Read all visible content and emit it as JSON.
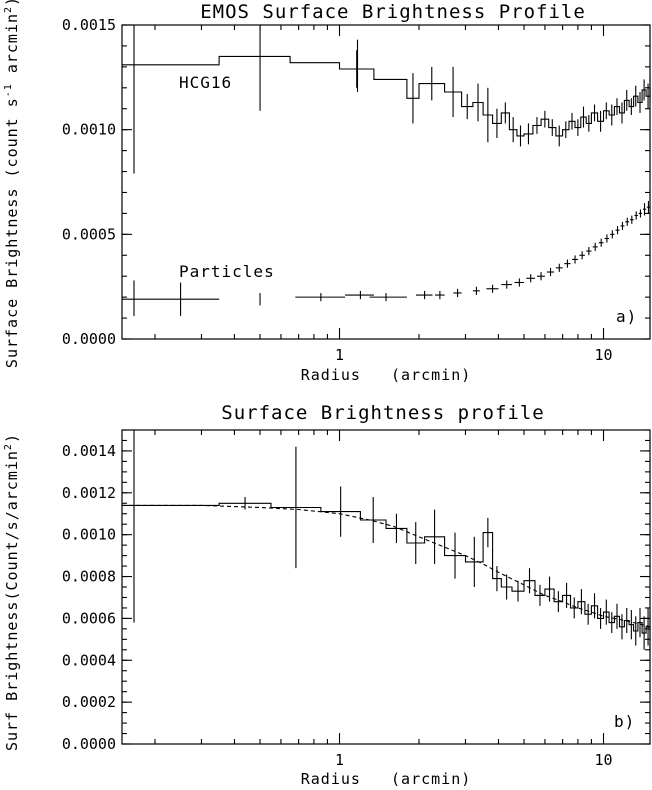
{
  "chart_data": [
    {
      "type": "line",
      "title": "EMOS Surface Brightness Profile",
      "xlabel": "Radius   (arcmin)",
      "ylabel": "Surface Brightness (count s",
      "ylabel_sup1": "-1",
      "ylabel_mid": " arcmin",
      "ylabel_sup2": "2",
      "ylabel_end": ")",
      "xscale": "log",
      "xlim": [
        0.15,
        15
      ],
      "ylim": [
        0.0,
        0.0015
      ],
      "y_ticks": [
        0.0,
        0.0005,
        0.001,
        0.0015
      ],
      "y_tick_labels": [
        "0.0000",
        "0.0005",
        "0.0010",
        "0.0015"
      ],
      "x_ticks": [
        1,
        10
      ],
      "x_tick_labels": [
        "1",
        "10"
      ],
      "panel_label": "a)",
      "annotations": [
        {
          "text": "HCG16",
          "x": 0.19,
          "y": 0.00118
        },
        {
          "text": "Particles",
          "x": 0.25,
          "y": 0.00029
        }
      ],
      "series": [
        {
          "name": "HCG16",
          "style": "step",
          "x": [
            0.15,
            0.35,
            0.65,
            1.0,
            1.35,
            1.8,
            2.0,
            2.5,
            2.9,
            3.2,
            3.5,
            3.8,
            4.1,
            4.4,
            4.7,
            5.0,
            5.4,
            5.8,
            6.2,
            6.6,
            7.0,
            7.4,
            7.8,
            8.2,
            8.6,
            9.0,
            9.5,
            10.0,
            10.5,
            11.0,
            11.5,
            12.0,
            12.5,
            13.0,
            13.5,
            14.0,
            14.5,
            15.0
          ],
          "y": [
            0.00131,
            0.00135,
            0.00132,
            0.00129,
            0.00124,
            0.00115,
            0.00122,
            0.00118,
            0.00111,
            0.00113,
            0.00107,
            0.00103,
            0.00108,
            0.001,
            0.00097,
            0.00098,
            0.00102,
            0.00105,
            0.00101,
            0.00097,
            0.001,
            0.00104,
            0.00101,
            0.00106,
            0.00103,
            0.00108,
            0.00104,
            0.00109,
            0.00107,
            0.00111,
            0.00108,
            0.00114,
            0.00111,
            0.00116,
            0.00113,
            0.00119,
            0.00116,
            0.0012
          ],
          "yerr": [
            0.00052,
            0.0,
            0.0,
            9e-05,
            0.0,
            0.00012,
            8e-05,
            0.00012,
            6e-05,
            9e-05,
            0.00013,
            7e-05,
            5e-05,
            6e-05,
            5e-05,
            5e-05,
            4e-05,
            4e-05,
            4e-05,
            5e-05,
            4e-05,
            4e-05,
            4e-05,
            5e-05,
            4e-05,
            4e-05,
            5e-05,
            4e-05,
            5e-05,
            4e-05,
            5e-05,
            5e-05,
            4e-05,
            5e-05,
            5e-05,
            5e-05,
            6e-05,
            6e-05
          ],
          "vbars": [
            {
              "x": 0.5,
              "y0": 0.00109,
              "y1": 0.00154
            },
            {
              "x": 1.17,
              "y0": 0.00118,
              "y1": 0.00143
            }
          ]
        },
        {
          "name": "Particles",
          "style": "points",
          "x": [
            0.25,
            0.5,
            0.85,
            1.2,
            1.5,
            2.1,
            2.4,
            2.8,
            3.3,
            3.8,
            4.3,
            4.8,
            5.3,
            5.8,
            6.3,
            6.8,
            7.3,
            7.8,
            8.3,
            8.8,
            9.3,
            9.8,
            10.3,
            10.8,
            11.3,
            11.8,
            12.3,
            12.8,
            13.3,
            13.8,
            14.3,
            14.8
          ],
          "y": [
            0.00019,
            0.00019,
            0.0002,
            0.00021,
            0.0002,
            0.00021,
            0.00021,
            0.00022,
            0.00023,
            0.00024,
            0.00026,
            0.00027,
            0.00029,
            0.0003,
            0.00032,
            0.00034,
            0.00036,
            0.00038,
            0.0004,
            0.00042,
            0.00044,
            0.00046,
            0.00048,
            0.0005,
            0.00052,
            0.00054,
            0.00056,
            0.00057,
            0.00059,
            0.0006,
            0.00062,
            0.00063
          ],
          "xerr_lo": [
            0.1,
            0.0,
            0.17,
            0.15,
            0.2,
            0.15,
            0.1,
            0.1,
            0.1,
            0.2,
            0.2,
            0.2,
            0.2,
            0.2,
            0.2,
            0.2,
            0.2,
            0.2,
            0.2,
            0.2,
            0.2,
            0.2,
            0.2,
            0.2,
            0.2,
            0.2,
            0.2,
            0.2,
            0.2,
            0.2,
            0.2,
            0.2
          ],
          "xerr_hi": [
            0.1,
            0.0,
            0.2,
            0.15,
            0.3,
            0.15,
            0.1,
            0.1,
            0.1,
            0.2,
            0.2,
            0.2,
            0.2,
            0.2,
            0.2,
            0.2,
            0.2,
            0.2,
            0.2,
            0.2,
            0.2,
            0.2,
            0.2,
            0.2,
            0.2,
            0.2,
            0.2,
            0.2,
            0.2,
            0.2,
            0.2,
            0.2
          ],
          "yerr": [
            7e-05,
            2e-05,
            1e-05,
            1e-05,
            1e-05,
            1e-05,
            1e-05,
            1e-05,
            1e-05,
            1e-05,
            1e-05,
            1e-05,
            1e-05,
            1e-05,
            1e-05,
            1e-05,
            1e-05,
            1e-05,
            1e-05,
            1e-05,
            1e-05,
            1e-05,
            1e-05,
            1e-05,
            1e-05,
            1e-05,
            1e-05,
            1e-05,
            1e-05,
            1e-05,
            2e-05,
            2e-05
          ]
        }
      ]
    },
    {
      "type": "line",
      "title": "Surface Brightness profile",
      "xlabel": "Radius   (arcmin)",
      "ylabel": "Surf Brightness(Count/s/arcmin",
      "ylabel_sup2": "2",
      "ylabel_end": ")",
      "xscale": "log",
      "xlim": [
        0.15,
        15
      ],
      "ylim": [
        0.0,
        0.0015
      ],
      "y_ticks": [
        0.0,
        0.0002,
        0.0004,
        0.0006,
        0.0008,
        0.001,
        0.0012,
        0.0014
      ],
      "y_tick_labels": [
        "0.0000",
        "0.0002",
        "0.0004",
        "0.0006",
        "0.0008",
        "0.0010",
        "0.0012",
        "0.0014"
      ],
      "x_ticks": [
        1,
        10
      ],
      "x_tick_labels": [
        "1",
        "10"
      ],
      "panel_label": "b)",
      "series": [
        {
          "style": "step",
          "x": [
            0.15,
            0.35,
            0.55,
            0.85,
            1.2,
            1.5,
            1.8,
            2.1,
            2.5,
            3.0,
            3.5,
            3.8,
            4.1,
            4.5,
            5.0,
            5.5,
            6.0,
            6.5,
            7.0,
            7.5,
            8.0,
            8.5,
            9.0,
            9.5,
            10.0,
            10.5,
            11.0,
            11.5,
            12.0,
            12.5,
            13.0,
            13.5,
            14.0,
            14.5,
            15.0
          ],
          "y": [
            0.00114,
            0.00115,
            0.00113,
            0.00111,
            0.00107,
            0.00103,
            0.00096,
            0.00099,
            0.0009,
            0.00087,
            0.00101,
            0.00079,
            0.00075,
            0.00073,
            0.00078,
            0.00071,
            0.00074,
            0.00068,
            0.00071,
            0.00065,
            0.00068,
            0.00062,
            0.00066,
            0.0006,
            0.00063,
            0.00058,
            0.00061,
            0.00056,
            0.00059,
            0.00057,
            0.00054,
            0.00058,
            0.00053,
            0.00056,
            0.00054
          ],
          "yerr": [
            0.00056,
            3e-05,
            0.00029,
            0.00012,
            0.00011,
            7e-05,
            0.0001,
            0.00013,
            0.00011,
            0.00012,
            7e-05,
            6e-05,
            6e-05,
            5e-05,
            6e-05,
            5e-05,
            6e-05,
            5e-05,
            6e-05,
            5e-05,
            6e-05,
            5e-05,
            6e-05,
            5e-05,
            6e-05,
            5e-05,
            6e-05,
            6e-05,
            6e-05,
            7e-05,
            7e-05,
            7e-05,
            8e-05,
            9e-05,
            9e-05
          ]
        },
        {
          "style": "model_curve",
          "x": [
            0.15,
            0.3,
            0.5,
            0.7,
            1.0,
            1.3,
            1.6,
            2.0,
            2.5,
            3.0,
            3.5,
            4.0,
            5.0,
            6.0,
            7.0,
            8.0,
            9.0,
            10.0,
            11.0,
            12.0,
            13.0,
            14.0,
            15.0
          ],
          "y": [
            0.00114,
            0.00114,
            0.00113,
            0.00112,
            0.0011,
            0.00107,
            0.00104,
            0.00099,
            0.00094,
            0.0009,
            0.00086,
            0.00082,
            0.00076,
            0.00071,
            0.00068,
            0.00065,
            0.00063,
            0.00061,
            0.0006,
            0.00059,
            0.00058,
            0.00057,
            0.00056
          ]
        }
      ]
    }
  ]
}
